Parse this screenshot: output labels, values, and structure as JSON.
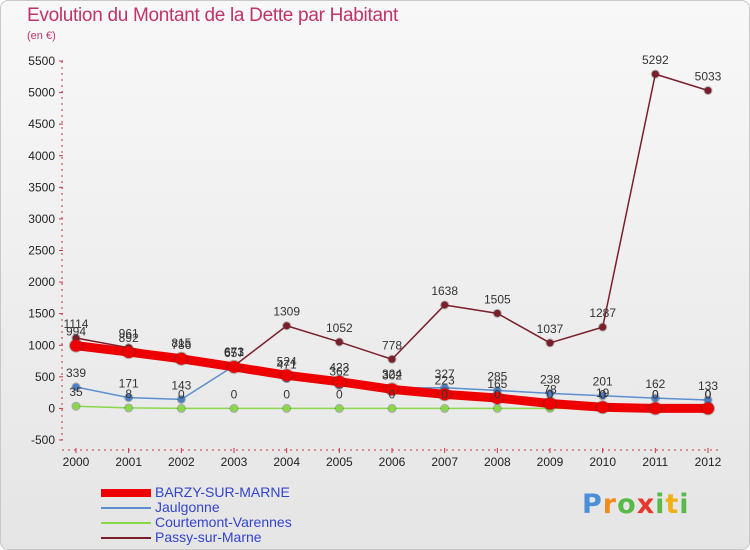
{
  "chart_data": {
    "type": "line",
    "title": "Evolution du Montant de la Dette par Habitant",
    "subtitle": "(en €)",
    "x": [
      2000,
      2001,
      2002,
      2003,
      2004,
      2005,
      2006,
      2007,
      2008,
      2009,
      2010,
      2011,
      2012
    ],
    "y_ticks": [
      -500,
      0,
      500,
      1000,
      1500,
      2000,
      2500,
      3000,
      3500,
      4000,
      4500,
      5000,
      5500
    ],
    "ylim": [
      -500,
      5500
    ],
    "grid": false,
    "legend_position": "bottom-left",
    "series": [
      {
        "name": "BARZY-SUR-MARNE",
        "color": "#ee0000",
        "values": [
          994,
          892,
          786,
          657,
          524,
          423,
          302,
          223,
          165,
          78,
          19,
          0,
          0
        ],
        "labels": [
          "994",
          "892",
          "786",
          "657",
          "524",
          "423",
          "302",
          "223",
          "165",
          "78",
          "19",
          "0",
          "0"
        ]
      },
      {
        "name": "Jaulgonne",
        "color": "#5b8fd0",
        "values": [
          339,
          171,
          143,
          673,
          471,
          362,
          324,
          327,
          285,
          238,
          201,
          162,
          133
        ],
        "labels": [
          "339",
          "171",
          "143",
          "673",
          "471",
          "362",
          "324",
          "327",
          "285",
          "238",
          "201",
          "162",
          "133"
        ]
      },
      {
        "name": "Courtemont-Varennes",
        "color": "#88d84a",
        "values": [
          35,
          8,
          0,
          0,
          0,
          0,
          0,
          0,
          0,
          0,
          0,
          0,
          0
        ],
        "labels": [
          "35",
          "8",
          "0",
          "0",
          "0",
          "0",
          "0",
          "0",
          "0",
          "0",
          "0",
          "0",
          "0"
        ]
      },
      {
        "name": "Passy-sur-Marne",
        "color": "#7a1f2a",
        "values": [
          1114,
          961,
          815,
          671,
          1309,
          1052,
          778,
          1638,
          1505,
          1037,
          1287,
          5292,
          5033
        ],
        "labels": [
          "1114",
          "961",
          "815",
          "671",
          "1309",
          "1052",
          "778",
          "1638",
          "1505",
          "1037",
          "1287",
          "5292",
          "5033"
        ]
      }
    ]
  },
  "logo": {
    "text": "Proxiti",
    "letters": [
      "P",
      "r",
      "o",
      "x",
      "i",
      "t",
      "i"
    ]
  }
}
